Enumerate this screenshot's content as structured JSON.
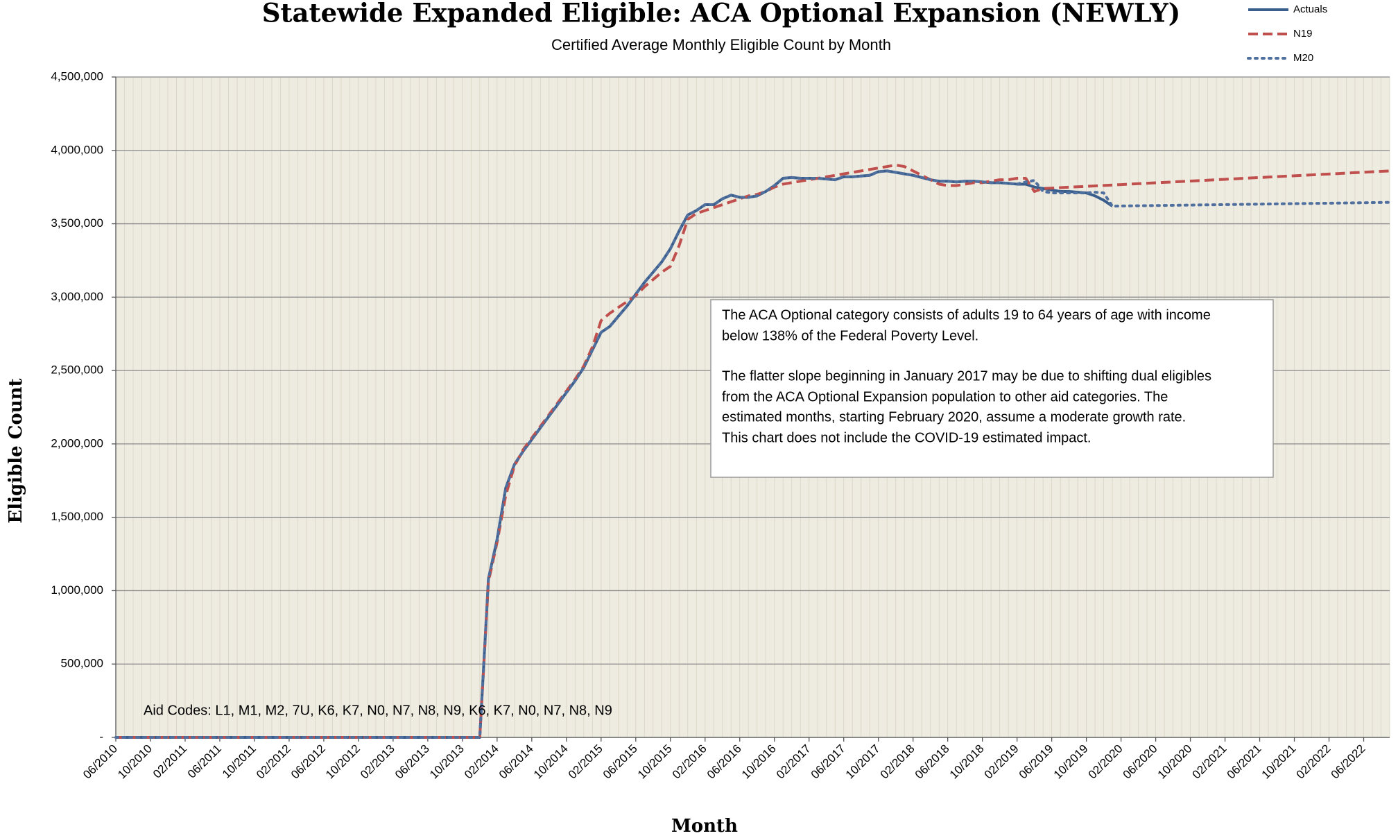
{
  "chart_data": {
    "type": "line",
    "title": "Statewide Expanded Eligible: ACA Optional Expansion (NEWLY)",
    "subtitle": "Certified Average Monthly Eligible Count by Month",
    "xlabel": "Month",
    "ylabel": "Eligible Count",
    "legend": "top-right",
    "grid": true,
    "annotations": {
      "box_lines": [
        "The ACA Optional category consists of adults 19 to 64 years of age with income",
        "below 138% of the Federal Poverty Level.",
        "The flatter slope beginning in January 2017 may be due to shifting dual eligibles",
        "from the ACA Optional Expansion population to other aid categories. The",
        "estimated months, starting February 2020, assume a moderate growth rate.",
        "This chart does not include the COVID-19 estimated impact."
      ],
      "aid_codes": "Aid Codes:  L1,  M1, M2, 7U, K6, K7, N0, N7, N8, N9, K6, K7, N0, N7, N8, N9"
    },
    "ylim": [
      0,
      4500000
    ],
    "yticks": [
      {
        "value": 0,
        "label": "-"
      },
      {
        "value": 500000,
        "label": "500,000"
      },
      {
        "value": 1000000,
        "label": "1,000,000"
      },
      {
        "value": 1500000,
        "label": "1,500,000"
      },
      {
        "value": 2000000,
        "label": "2,000,000"
      },
      {
        "value": 2500000,
        "label": "2,500,000"
      },
      {
        "value": 3000000,
        "label": "3,000,000"
      },
      {
        "value": 3500000,
        "label": "3,500,000"
      },
      {
        "value": 4000000,
        "label": "4,000,000"
      },
      {
        "value": 4500000,
        "label": "4,500,000"
      }
    ],
    "categories": [
      "06/2010",
      null,
      null,
      null,
      "10/2010",
      null,
      null,
      null,
      "02/2011",
      null,
      null,
      null,
      "06/2011",
      null,
      null,
      null,
      "10/2011",
      null,
      null,
      null,
      "02/2012",
      null,
      null,
      null,
      "06/2012",
      null,
      null,
      null,
      "10/2012",
      null,
      null,
      null,
      "02/2013",
      null,
      null,
      null,
      "06/2013",
      null,
      null,
      null,
      "10/2013",
      null,
      null,
      null,
      "02/2014",
      null,
      null,
      null,
      "06/2014",
      null,
      null,
      null,
      "10/2014",
      null,
      null,
      null,
      "02/2015",
      null,
      null,
      null,
      "06/2015",
      null,
      null,
      null,
      "10/2015",
      null,
      null,
      null,
      "02/2016",
      null,
      null,
      null,
      "06/2016",
      null,
      null,
      null,
      "10/2016",
      null,
      null,
      null,
      "02/2017",
      null,
      null,
      null,
      "06/2017",
      null,
      null,
      null,
      "10/2017",
      null,
      null,
      null,
      "02/2018",
      null,
      null,
      null,
      "06/2018",
      null,
      null,
      null,
      "10/2018",
      null,
      null,
      null,
      "02/2019",
      null,
      null,
      null,
      "06/2019",
      null,
      null,
      null,
      "10/2019",
      null,
      null,
      null,
      "02/2020",
      null,
      null,
      null,
      "06/2020",
      null,
      null,
      null,
      "10/2020",
      null,
      null,
      null,
      "02/2021",
      null,
      null,
      null,
      "06/2021",
      null,
      null,
      null,
      "10/2021",
      null,
      null,
      null,
      "02/2022",
      null,
      null,
      null,
      "06/2022",
      null,
      null,
      null
    ],
    "series": [
      {
        "name": "Actuals",
        "color": "#3a5e8c",
        "style": "solid",
        "values": [
          0,
          0,
          0,
          0,
          0,
          0,
          0,
          0,
          0,
          0,
          0,
          0,
          0,
          0,
          0,
          0,
          0,
          0,
          0,
          0,
          0,
          0,
          0,
          0,
          0,
          0,
          0,
          0,
          0,
          0,
          0,
          0,
          0,
          0,
          0,
          0,
          0,
          0,
          0,
          0,
          0,
          0,
          0,
          1080000,
          1350000,
          1700000,
          1860000,
          1950000,
          2030000,
          2110000,
          2190000,
          2270000,
          2350000,
          2430000,
          2520000,
          2640000,
          2760000,
          2800000,
          2870000,
          2940000,
          3020000,
          3100000,
          3170000,
          3240000,
          3330000,
          3450000,
          3560000,
          3590000,
          3630000,
          3630000,
          3670000,
          3695000,
          3680000,
          3680000,
          3690000,
          3720000,
          3760000,
          3810000,
          3815000,
          3810000,
          3810000,
          3810000,
          3805000,
          3800000,
          3820000,
          3820000,
          3825000,
          3830000,
          3855000,
          3860000,
          3850000,
          3840000,
          3830000,
          3815000,
          3800000,
          3790000,
          3790000,
          3785000,
          3790000,
          3790000,
          3785000,
          3780000,
          3780000,
          3775000,
          3770000,
          3770000,
          3750000,
          3740000,
          3730000,
          3720000,
          3720000,
          3715000,
          3710000,
          3690000,
          3660000,
          3620000,
          null,
          null,
          null,
          null,
          null,
          null,
          null,
          null,
          null,
          null,
          null,
          null,
          null,
          null,
          null,
          null,
          null,
          null,
          null,
          null,
          null,
          null,
          null,
          null,
          null,
          null,
          null,
          null,
          null,
          null,
          null,
          null
        ]
      },
      {
        "name": "N19",
        "color": "#c0504d",
        "style": "dashed",
        "values": [
          0,
          0,
          0,
          0,
          0,
          0,
          0,
          0,
          0,
          0,
          0,
          0,
          0,
          0,
          0,
          0,
          0,
          0,
          0,
          0,
          0,
          0,
          0,
          0,
          0,
          0,
          0,
          0,
          0,
          0,
          0,
          0,
          0,
          0,
          0,
          0,
          0,
          0,
          0,
          0,
          0,
          0,
          0,
          1060000,
          1330000,
          1650000,
          1850000,
          1960000,
          2040000,
          2120000,
          2200000,
          2280000,
          2360000,
          2440000,
          2530000,
          2660000,
          2840000,
          2890000,
          2930000,
          2970000,
          3010000,
          3070000,
          3120000,
          3170000,
          3210000,
          3350000,
          3530000,
          3570000,
          3590000,
          3610000,
          3630000,
          3650000,
          3670000,
          3690000,
          3700000,
          3720000,
          3750000,
          3770000,
          3780000,
          3790000,
          3800000,
          3810000,
          3820000,
          3830000,
          3840000,
          3850000,
          3860000,
          3870000,
          3880000,
          3890000,
          3900000,
          3890000,
          3860000,
          3830000,
          3800000,
          3770000,
          3760000,
          3760000,
          3770000,
          3780000,
          3780000,
          3790000,
          3800000,
          3800000,
          3810000,
          3810000,
          3720000,
          3740000,
          3743000,
          3746000,
          3749000,
          3752000,
          3755000,
          3758000,
          3761000,
          3764000,
          3767000,
          3770000,
          3773000,
          3776000,
          3779000,
          3782000,
          3785000,
          3788000,
          3791000,
          3794000,
          3797000,
          3800000,
          3803000,
          3806000,
          3809000,
          3812000,
          3815000,
          3818000,
          3821000,
          3824000,
          3827000,
          3830000,
          3833000,
          3836000,
          3839000,
          3842000,
          3845000,
          3848000,
          3851000,
          3854000,
          3857000,
          3860000
        ]
      },
      {
        "name": "M20",
        "color": "#4f6f9f",
        "style": "dotted",
        "values": [
          0,
          0,
          0,
          0,
          0,
          0,
          0,
          0,
          0,
          0,
          0,
          0,
          0,
          0,
          0,
          0,
          0,
          0,
          0,
          0,
          0,
          0,
          0,
          0,
          0,
          0,
          0,
          0,
          0,
          0,
          0,
          0,
          0,
          0,
          0,
          0,
          0,
          0,
          0,
          0,
          0,
          0,
          0,
          1080000,
          1350000,
          1700000,
          1860000,
          1950000,
          2030000,
          2110000,
          2190000,
          2270000,
          2350000,
          2430000,
          2520000,
          2640000,
          2760000,
          2800000,
          2870000,
          2940000,
          3020000,
          3100000,
          3170000,
          3240000,
          3330000,
          3450000,
          3560000,
          3590000,
          3630000,
          3630000,
          3670000,
          3695000,
          3680000,
          3680000,
          3690000,
          3720000,
          3760000,
          3810000,
          3815000,
          3810000,
          3810000,
          3810000,
          3805000,
          3800000,
          3820000,
          3820000,
          3825000,
          3830000,
          3855000,
          3860000,
          3850000,
          3840000,
          3830000,
          3815000,
          3800000,
          3790000,
          3790000,
          3785000,
          3790000,
          3790000,
          3785000,
          3780000,
          3780000,
          3775000,
          3770000,
          3785000,
          3795000,
          3720000,
          3710000,
          3710000,
          3710000,
          3710000,
          3710000,
          3715000,
          3710000,
          3620000,
          3621000,
          3621800,
          3622600,
          3623400,
          3624200,
          3625000,
          3625800,
          3626600,
          3627400,
          3628200,
          3629000,
          3629800,
          3630600,
          3631400,
          3632200,
          3633000,
          3633800,
          3634600,
          3635400,
          3636200,
          3637000,
          3637800,
          3638600,
          3639400,
          3640200,
          3641000,
          3641800,
          3642600,
          3643400,
          3644200,
          3645000,
          3645800
        ]
      }
    ]
  }
}
